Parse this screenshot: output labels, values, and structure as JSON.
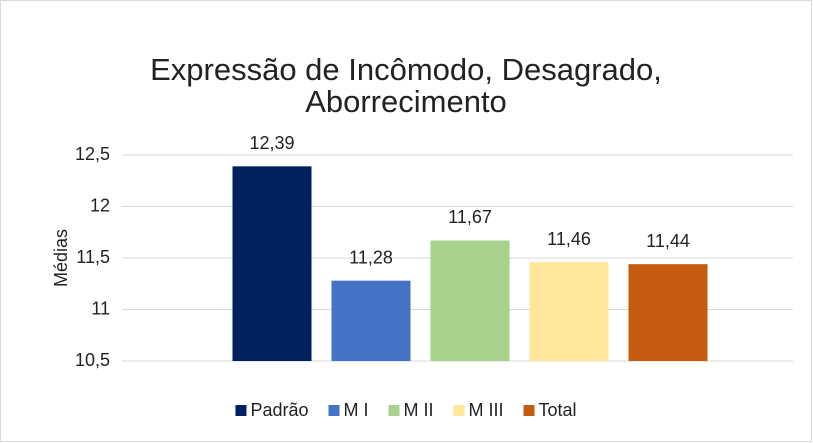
{
  "chart_data": {
    "type": "bar",
    "title": [
      "Expressão de Incômodo, Desagrado,",
      "Aborrecimento"
    ],
    "ylabel": "Médias",
    "categories": [
      null
    ],
    "series": [
      {
        "name": "Padrão",
        "color": "#002060",
        "values": [
          12.39
        ],
        "value_labels": [
          "12,39"
        ]
      },
      {
        "name": "M I",
        "color": "#4472c4",
        "values": [
          11.28
        ],
        "value_labels": [
          "11,28"
        ]
      },
      {
        "name": "M II",
        "color": "#a9d18e",
        "values": [
          11.67
        ],
        "value_labels": [
          "11,67"
        ]
      },
      {
        "name": "M III",
        "color": "#ffe699",
        "values": [
          11.46
        ],
        "value_labels": [
          "11,46"
        ]
      },
      {
        "name": "Total",
        "color": "#c55a11",
        "values": [
          11.44
        ],
        "value_labels": [
          "11,44"
        ]
      }
    ],
    "ylim": [
      10.5,
      12.5
    ],
    "yticks": [
      {
        "value": 10.5,
        "label": "10,5"
      },
      11,
      {
        "value": 11.5,
        "label": "11,5"
      },
      12,
      {
        "value": 12.5,
        "label": "12,5"
      }
    ],
    "grid": true,
    "legend": "bottom"
  }
}
